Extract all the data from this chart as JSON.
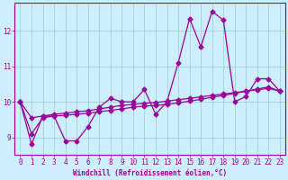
{
  "xlabel": "Windchill (Refroidissement éolien,°C)",
  "background_color": "#cceeff",
  "line_color": "#990099",
  "grid_color": "#99cccc",
  "x": [
    0,
    1,
    2,
    3,
    4,
    5,
    6,
    7,
    8,
    9,
    10,
    11,
    12,
    13,
    14,
    15,
    16,
    17,
    18,
    19,
    20,
    21,
    22,
    23
  ],
  "series1": [
    10.0,
    8.8,
    9.6,
    9.6,
    8.9,
    8.9,
    9.3,
    9.85,
    10.1,
    10.0,
    10.0,
    10.35,
    9.65,
    10.0,
    11.1,
    12.35,
    11.55,
    12.55,
    12.3,
    10.0,
    10.15,
    10.65,
    10.65,
    10.3
  ],
  "series2": [
    10.0,
    9.1,
    9.55,
    9.6,
    9.62,
    9.65,
    9.68,
    9.72,
    9.76,
    9.8,
    9.85,
    9.88,
    9.9,
    9.93,
    9.97,
    10.02,
    10.07,
    10.13,
    10.18,
    10.24,
    10.3,
    10.36,
    10.42,
    10.3
  ],
  "series3": [
    10.0,
    9.55,
    9.6,
    9.65,
    9.68,
    9.72,
    9.75,
    9.8,
    9.85,
    9.9,
    9.93,
    9.96,
    9.98,
    10.02,
    10.06,
    10.1,
    10.14,
    10.18,
    10.22,
    10.26,
    10.3,
    10.34,
    10.38,
    10.3
  ],
  "xmin": -0.5,
  "xmax": 23.5,
  "ymin": 8.5,
  "ymax": 12.8,
  "yticks": [
    9,
    10,
    11,
    12
  ],
  "xticks": [
    0,
    1,
    2,
    3,
    4,
    5,
    6,
    7,
    8,
    9,
    10,
    11,
    12,
    13,
    14,
    15,
    16,
    17,
    18,
    19,
    20,
    21,
    22,
    23
  ],
  "fontsize": 5.5,
  "marker": "D",
  "markersize": 2.5,
  "linewidth": 0.9
}
